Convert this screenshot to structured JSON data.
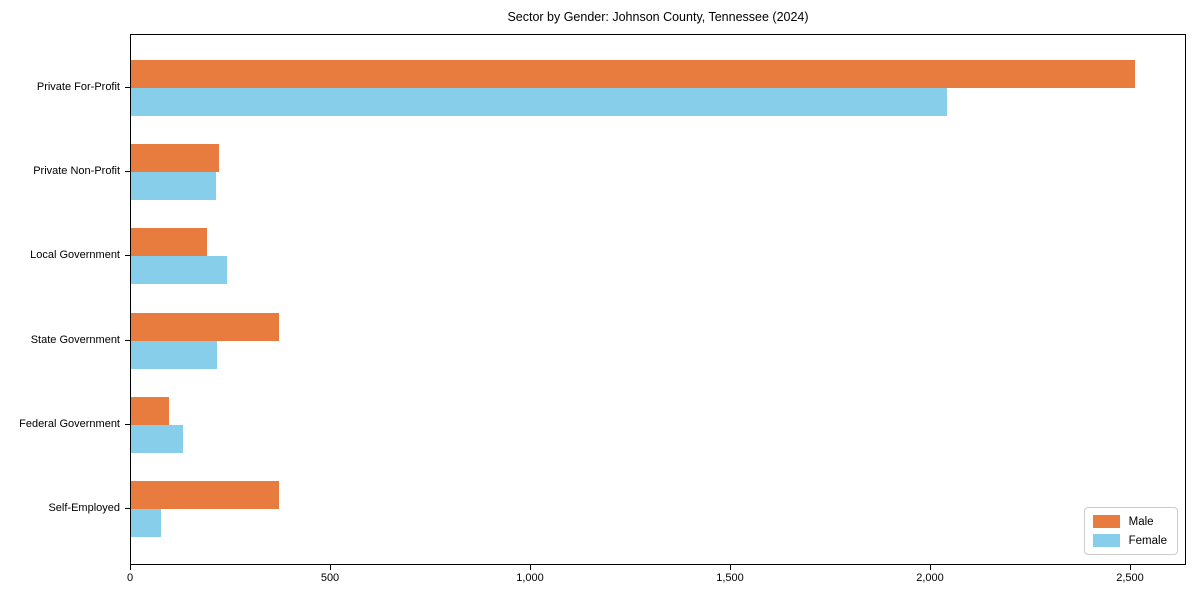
{
  "chart_data": {
    "type": "bar",
    "orientation": "horizontal",
    "title": "Sector by Gender: Johnson County, Tennessee (2024)",
    "categories": [
      "Private For-Profit",
      "Private Non-Profit",
      "Local Government",
      "State Government",
      "Federal Government",
      "Self-Employed"
    ],
    "series": [
      {
        "name": "Male",
        "color": "#e87b3e",
        "values": [
          2515,
          220,
          190,
          370,
          95,
          370
        ]
      },
      {
        "name": "Female",
        "color": "#87ceeb",
        "values": [
          2045,
          212,
          240,
          215,
          130,
          75
        ]
      }
    ],
    "xlabel": "",
    "ylabel": "",
    "xlim": [
      0,
      2640
    ],
    "xticks": [
      0,
      500,
      1000,
      1500,
      2000,
      2500
    ],
    "xtick_labels": [
      "0",
      "500",
      "1,000",
      "1,500",
      "2,000",
      "2,500"
    ],
    "grid": false,
    "legend_position": "lower right",
    "background_color": "#ffffff",
    "axis_color": "#000000"
  }
}
